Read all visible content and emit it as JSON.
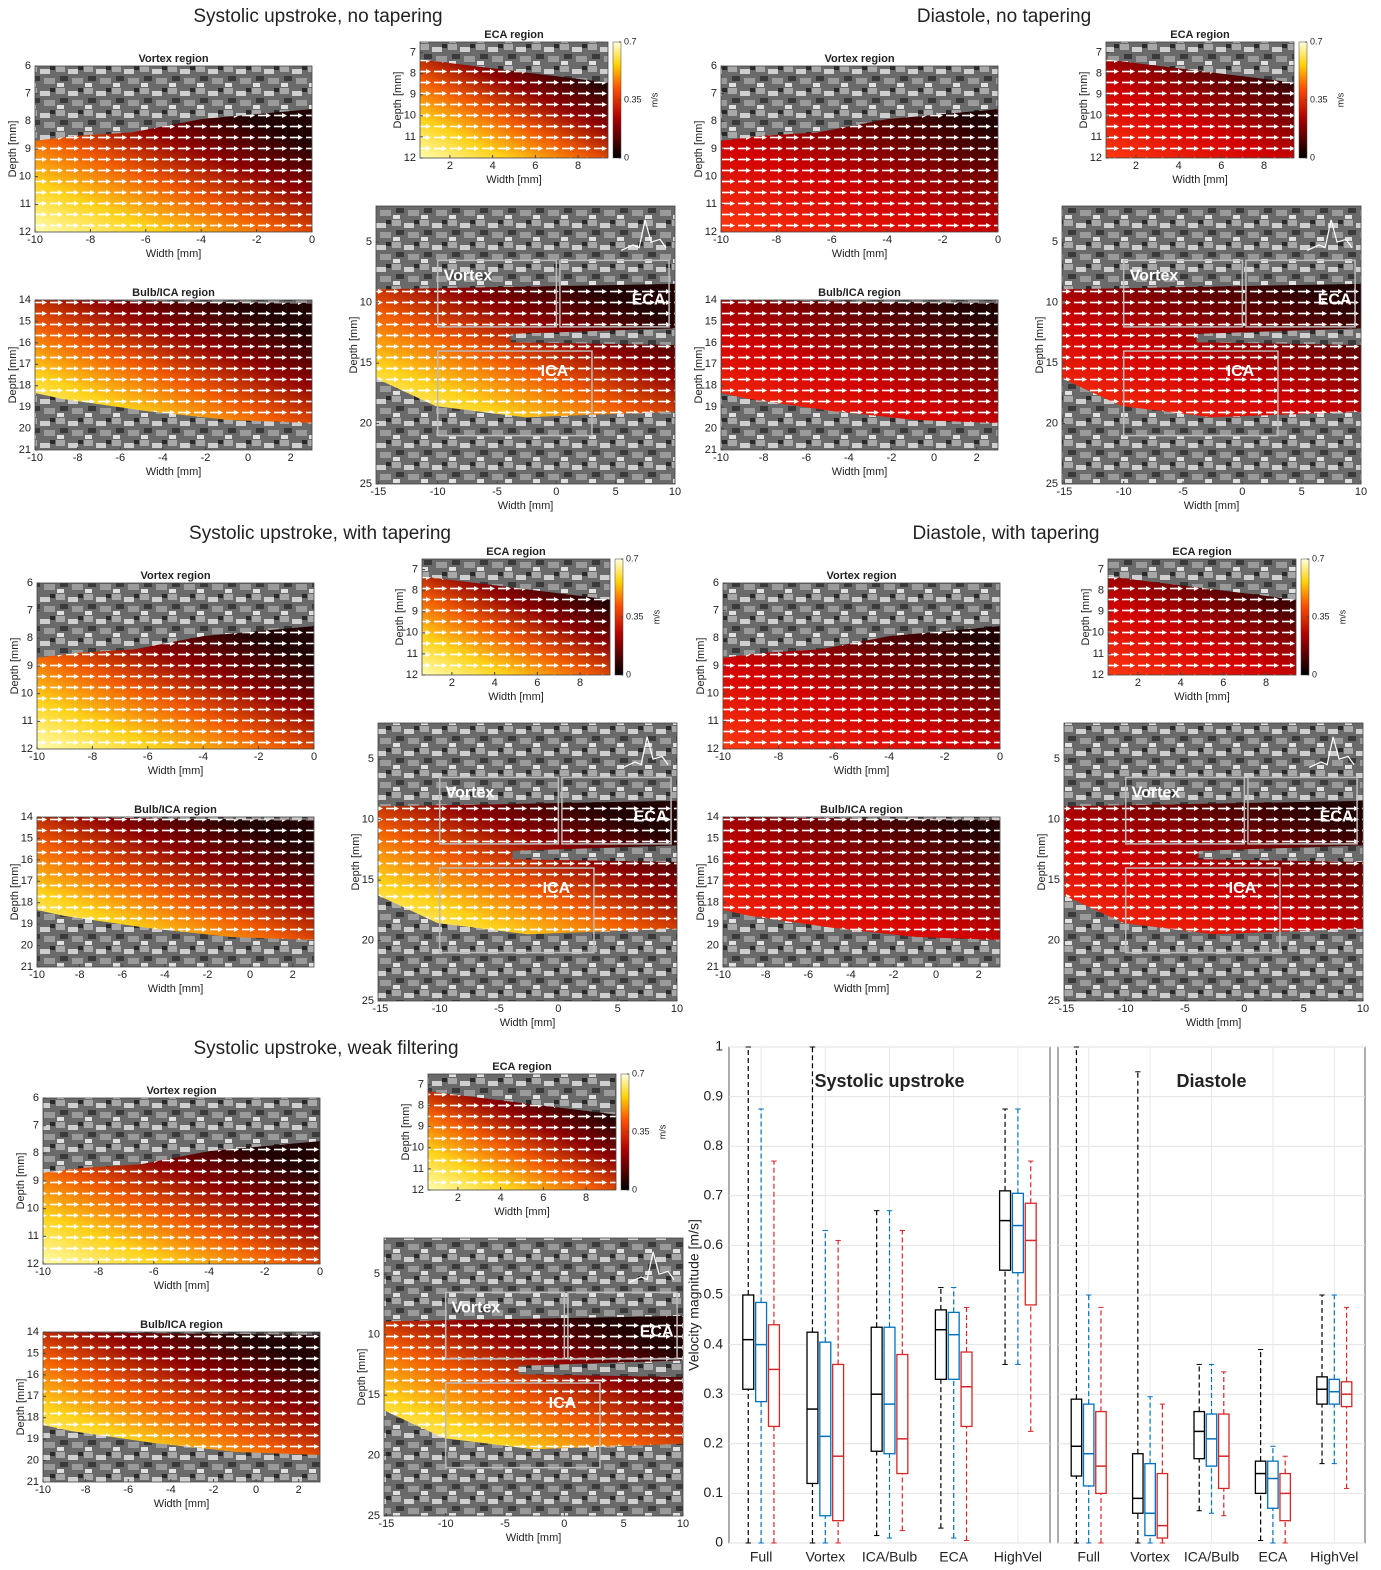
{
  "chart_data": [
    {
      "type": "flow",
      "title": "Systolic upstroke, no tapering",
      "vortex": {
        "title": "Vortex region",
        "xlabel": "Width [mm]",
        "ylabel": "Depth [mm]",
        "xlim": [
          -10,
          0
        ],
        "ylim": [
          6,
          12
        ],
        "xticks": [
          -10,
          -8,
          -6,
          -4,
          -2,
          0
        ],
        "yticks": [
          6,
          7,
          8,
          9,
          10,
          11,
          12
        ]
      },
      "bulb": {
        "title": "Bulb/ICA region",
        "xlabel": "Width [mm]",
        "ylabel": "Depth [mm]",
        "xlim": [
          -10,
          3
        ],
        "ylim": [
          14,
          21
        ],
        "xticks": [
          -10,
          -8,
          -6,
          -4,
          -2,
          0,
          2
        ],
        "yticks": [
          14,
          15,
          16,
          17,
          18,
          19,
          20,
          21
        ]
      },
      "eca": {
        "title": "ECA region",
        "xlabel": "Width [mm]",
        "ylabel": "Depth [mm]",
        "xlim": [
          0.6,
          9.4
        ],
        "ylim": [
          6.5,
          12
        ],
        "xticks": [
          2,
          4,
          6,
          8
        ],
        "yticks": [
          7,
          8,
          9,
          10,
          11,
          12
        ],
        "colorbar": {
          "ticks": [
            0,
            0.35,
            0.7
          ],
          "label": "m/s"
        }
      },
      "main": {
        "xlabel": "Width [mm]",
        "ylabel": "Depth [mm]",
        "xlim": [
          -15.2,
          10
        ],
        "ylim": [
          2,
          25
        ],
        "xticks": [
          -15,
          -10,
          -5,
          0,
          5,
          10
        ],
        "yticks": [
          5,
          10,
          15,
          20,
          25
        ],
        "annotations": [
          "Vortex",
          "ECA",
          "ICA"
        ]
      }
    },
    {
      "type": "flow",
      "title": "Diastole, no tapering",
      "vortex": {
        "title": "Vortex region",
        "xlabel": "Width [mm]",
        "ylabel": "Depth [mm]",
        "xlim": [
          -10,
          0
        ],
        "ylim": [
          6,
          12
        ],
        "xticks": [
          -10,
          -8,
          -6,
          -4,
          -2,
          0
        ],
        "yticks": [
          6,
          7,
          8,
          9,
          10,
          11,
          12
        ]
      },
      "bulb": {
        "title": "Bulb/ICA region",
        "xlabel": "Width [mm]",
        "ylabel": "Depth [mm]",
        "xlim": [
          -10,
          3
        ],
        "ylim": [
          14,
          21
        ],
        "xticks": [
          -10,
          -8,
          -6,
          -4,
          -2,
          0,
          2
        ],
        "yticks": [
          14,
          15,
          16,
          17,
          18,
          19,
          20,
          21
        ]
      },
      "eca": {
        "title": "ECA region",
        "xlabel": "Width [mm]",
        "ylabel": "Depth [mm]",
        "xlim": [
          0.6,
          9.4
        ],
        "ylim": [
          6.5,
          12
        ],
        "xticks": [
          2,
          4,
          6,
          8
        ],
        "yticks": [
          7,
          8,
          9,
          10,
          11,
          12
        ],
        "colorbar": {
          "ticks": [
            0,
            0.35,
            0.7
          ],
          "label": "m/s"
        }
      },
      "main": {
        "xlabel": "Width [mm]",
        "ylabel": "Depth [mm]",
        "xlim": [
          -15.2,
          10
        ],
        "ylim": [
          2,
          25
        ],
        "xticks": [
          -15,
          -10,
          -5,
          0,
          5,
          10
        ],
        "yticks": [
          5,
          10,
          15,
          20,
          25
        ],
        "annotations": [
          "Vortex",
          "ECA",
          "ICA"
        ]
      }
    },
    {
      "type": "flow",
      "title": "Systolic upstroke, with tapering",
      "vortex": {
        "title": "Vortex region",
        "xlabel": "Width [mm]",
        "ylabel": "Depth [mm]",
        "xlim": [
          -10,
          0
        ],
        "ylim": [
          6,
          12
        ],
        "xticks": [
          -10,
          -8,
          -6,
          -4,
          -2,
          0
        ],
        "yticks": [
          6,
          7,
          8,
          9,
          10,
          11,
          12
        ]
      },
      "bulb": {
        "title": "Bulb/ICA region",
        "xlabel": "Width [mm]",
        "ylabel": "Depth [mm]",
        "xlim": [
          -10,
          3
        ],
        "ylim": [
          14,
          21
        ],
        "xticks": [
          -10,
          -8,
          -6,
          -4,
          -2,
          0,
          2
        ],
        "yticks": [
          14,
          15,
          16,
          17,
          18,
          19,
          20,
          21
        ]
      },
      "eca": {
        "title": "ECA region",
        "xlabel": "Width [mm]",
        "ylabel": "Depth [mm]",
        "xlim": [
          0.6,
          9.4
        ],
        "ylim": [
          6.5,
          12
        ],
        "xticks": [
          2,
          4,
          6,
          8
        ],
        "yticks": [
          7,
          8,
          9,
          10,
          11,
          12
        ],
        "colorbar": {
          "ticks": [
            0,
            0.35,
            0.7
          ],
          "label": "m/s"
        }
      },
      "main": {
        "xlabel": "Width [mm]",
        "ylabel": "Depth [mm]",
        "xlim": [
          -15.2,
          10
        ],
        "ylim": [
          2,
          25
        ],
        "xticks": [
          -15,
          -10,
          -5,
          0,
          5,
          10
        ],
        "yticks": [
          5,
          10,
          15,
          20,
          25
        ],
        "annotations": [
          "Vortex",
          "ECA",
          "ICA"
        ]
      }
    },
    {
      "type": "flow",
      "title": "Diastole, with tapering",
      "vortex": {
        "title": "Vortex region",
        "xlabel": "Width [mm]",
        "ylabel": "Depth [mm]",
        "xlim": [
          -10,
          0
        ],
        "ylim": [
          6,
          12
        ],
        "xticks": [
          -10,
          -8,
          -6,
          -4,
          -2,
          0
        ],
        "yticks": [
          6,
          7,
          8,
          9,
          10,
          11,
          12
        ]
      },
      "bulb": {
        "title": "Bulb/ICA region",
        "xlabel": "Width [mm]",
        "ylabel": "Depth [mm]",
        "xlim": [
          -10,
          3
        ],
        "ylim": [
          14,
          21
        ],
        "xticks": [
          -10,
          -8,
          -6,
          -4,
          -2,
          0,
          2
        ],
        "yticks": [
          14,
          15,
          16,
          17,
          18,
          19,
          20,
          21
        ]
      },
      "eca": {
        "title": "ECA region",
        "xlabel": "Width [mm]",
        "ylabel": "Depth [mm]",
        "xlim": [
          0.6,
          9.4
        ],
        "ylim": [
          6.5,
          12
        ],
        "xticks": [
          2,
          4,
          6,
          8
        ],
        "yticks": [
          7,
          8,
          9,
          10,
          11,
          12
        ],
        "colorbar": {
          "ticks": [
            0,
            0.35,
            0.7
          ],
          "label": "m/s"
        }
      },
      "main": {
        "xlabel": "Width [mm]",
        "ylabel": "Depth [mm]",
        "xlim": [
          -15.2,
          10
        ],
        "ylim": [
          2,
          25
        ],
        "xticks": [
          -15,
          -10,
          -5,
          0,
          5,
          10
        ],
        "yticks": [
          5,
          10,
          15,
          20,
          25
        ],
        "annotations": [
          "Vortex",
          "ECA",
          "ICA"
        ]
      }
    },
    {
      "type": "flow",
      "title": "Systolic upstroke, weak filtering",
      "vortex": {
        "title": "Vortex region",
        "xlabel": "Width [mm]",
        "ylabel": "Depth [mm]",
        "xlim": [
          -10,
          0
        ],
        "ylim": [
          6,
          12
        ],
        "xticks": [
          -10,
          -8,
          -6,
          -4,
          -2,
          0
        ],
        "yticks": [
          6,
          7,
          8,
          9,
          10,
          11,
          12
        ]
      },
      "bulb": {
        "title": "Bulb/ICA region",
        "xlabel": "Width [mm]",
        "ylabel": "Depth [mm]",
        "xlim": [
          -10,
          3
        ],
        "ylim": [
          14,
          21
        ],
        "xticks": [
          -10,
          -8,
          -6,
          -4,
          -2,
          0,
          2
        ],
        "yticks": [
          14,
          15,
          16,
          17,
          18,
          19,
          20,
          21
        ]
      },
      "eca": {
        "title": "ECA region",
        "xlabel": "Width [mm]",
        "ylabel": "Depth [mm]",
        "xlim": [
          0.6,
          9.4
        ],
        "ylim": [
          6.5,
          12
        ],
        "xticks": [
          2,
          4,
          6,
          8
        ],
        "yticks": [
          7,
          8,
          9,
          10,
          11,
          12
        ],
        "colorbar": {
          "ticks": [
            0,
            0.35,
            0.7
          ],
          "label": "m/s"
        }
      },
      "main": {
        "xlabel": "Width [mm]",
        "ylabel": "Depth [mm]",
        "xlim": [
          -15.2,
          10
        ],
        "ylim": [
          2,
          25
        ],
        "xticks": [
          -15,
          -10,
          -5,
          0,
          5,
          10
        ],
        "yticks": [
          5,
          10,
          15,
          20,
          25
        ],
        "annotations": [
          "Vortex",
          "ECA",
          "ICA"
        ]
      }
    },
    {
      "type": "box",
      "title": "Systolic upstroke",
      "ylabel": "Velocity magnitude [m/s]",
      "categories": [
        "Full",
        "Vortex",
        "ICA/Bulb",
        "ECA",
        "HighVel"
      ],
      "ylim": [
        0,
        1
      ],
      "yticks": [
        0,
        0.1,
        0.2,
        0.3,
        0.4,
        0.5,
        0.6,
        0.7,
        0.8,
        0.9,
        1
      ],
      "grid": true,
      "ytick_labels": true,
      "series": [
        {
          "color": "#000000",
          "low": [
            0,
            0,
            0.015,
            0.03,
            0.36
          ],
          "q1": [
            0.31,
            0.12,
            0.185,
            0.33,
            0.55
          ],
          "median": [
            0.41,
            0.27,
            0.3,
            0.43,
            0.65
          ],
          "q3": [
            0.5,
            0.425,
            0.435,
            0.47,
            0.71
          ],
          "high": [
            1,
            1,
            0.67,
            0.515,
            0.875
          ]
        },
        {
          "color": "#0072bd",
          "low": [
            0,
            0,
            0.01,
            0.01,
            0.36
          ],
          "q1": [
            0.285,
            0.055,
            0.18,
            0.33,
            0.545
          ],
          "median": [
            0.4,
            0.215,
            0.28,
            0.42,
            0.64
          ],
          "q3": [
            0.485,
            0.405,
            0.435,
            0.465,
            0.705
          ],
          "high": [
            0.875,
            0.63,
            0.67,
            0.515,
            0.875
          ]
        },
        {
          "color": "#d62728",
          "low": [
            0,
            0,
            0.025,
            0.005,
            0.225
          ],
          "q1": [
            0.235,
            0.045,
            0.14,
            0.235,
            0.48
          ],
          "median": [
            0.35,
            0.175,
            0.21,
            0.315,
            0.61
          ],
          "q3": [
            0.44,
            0.36,
            0.38,
            0.385,
            0.685
          ],
          "high": [
            0.77,
            0.61,
            0.63,
            0.475,
            0.77
          ]
        }
      ]
    },
    {
      "type": "box",
      "title": "Diastole",
      "categories": [
        "Full",
        "Vortex",
        "ICA/Bulb",
        "ECA",
        "HighVel"
      ],
      "ylim": [
        0,
        1
      ],
      "yticks": [
        0,
        0.1,
        0.2,
        0.3,
        0.4,
        0.5,
        0.6,
        0.7,
        0.8,
        0.9,
        1
      ],
      "grid": true,
      "ytick_labels": false,
      "series": [
        {
          "color": "#000000",
          "low": [
            0,
            0,
            0.065,
            0.005,
            0.16
          ],
          "q1": [
            0.135,
            0.06,
            0.17,
            0.1,
            0.28
          ],
          "median": [
            0.195,
            0.09,
            0.225,
            0.14,
            0.31
          ],
          "q3": [
            0.29,
            0.18,
            0.265,
            0.165,
            0.335
          ],
          "high": [
            1,
            0.95,
            0.36,
            0.39,
            0.5
          ]
        },
        {
          "color": "#0072bd",
          "low": [
            0,
            0,
            0.06,
            0,
            0.16
          ],
          "q1": [
            0.115,
            0.015,
            0.155,
            0.07,
            0.28
          ],
          "median": [
            0.18,
            0.06,
            0.21,
            0.13,
            0.305
          ],
          "q3": [
            0.28,
            0.16,
            0.26,
            0.165,
            0.33
          ],
          "high": [
            0.5,
            0.295,
            0.36,
            0.195,
            0.5
          ]
        },
        {
          "color": "#d62728",
          "low": [
            0,
            0,
            0.055,
            0,
            0.11
          ],
          "q1": [
            0.1,
            0.01,
            0.11,
            0.045,
            0.275
          ],
          "median": [
            0.155,
            0.035,
            0.175,
            0.1,
            0.3
          ],
          "q3": [
            0.265,
            0.14,
            0.26,
            0.14,
            0.325
          ],
          "high": [
            0.475,
            0.28,
            0.345,
            0.175,
            0.475
          ]
        }
      ]
    }
  ]
}
